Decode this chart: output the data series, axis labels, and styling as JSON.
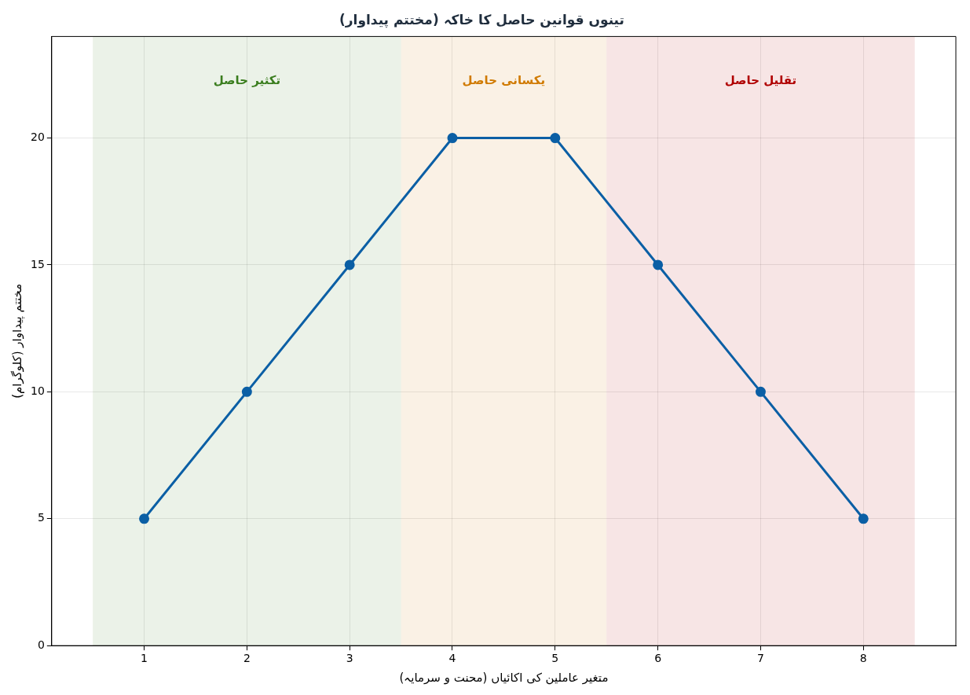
{
  "chart_data": {
    "type": "line",
    "title": "تینوں قوانین حاصل کا خاکہ (مختتم پیداوار)",
    "xlabel": "متغیر عاملین کی اکائیاں (محنت و سرمایہ)",
    "ylabel": "مختتم پیداوار (کلوگرام)",
    "x": [
      1,
      2,
      3,
      4,
      5,
      6,
      7,
      8
    ],
    "series": [
      {
        "color": "#0b5fa5",
        "values": [
          5,
          10,
          15,
          20,
          20,
          15,
          10,
          5
        ]
      }
    ],
    "xlim": [
      0.1,
      8.9
    ],
    "xticks": [
      1,
      2,
      3,
      4,
      5,
      6,
      7,
      8
    ],
    "ylim": [
      0,
      24
    ],
    "yticks": [
      0,
      5,
      10,
      15,
      20
    ],
    "bands": [
      {
        "axis": "x",
        "from": 0.5,
        "to": 3.5,
        "label": "تکثیر حاصل",
        "color": "#3a7d1e"
      },
      {
        "axis": "x",
        "from": 3.5,
        "to": 5.5,
        "label": "یکسانی حاصل",
        "color": "#d07a00"
      },
      {
        "axis": "x",
        "from": 5.5,
        "to": 8.5,
        "label": "تقلیل حاصل",
        "color": "#b00000"
      }
    ],
    "grid": true,
    "legend": false,
    "marker": "circle",
    "line_style": "solid"
  }
}
